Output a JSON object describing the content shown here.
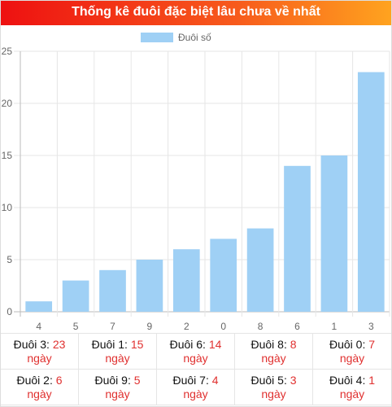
{
  "header": {
    "title": "Thống kê đuôi đặc biệt lâu chưa về nhất"
  },
  "colors": {
    "bar": "#9fd0f5",
    "accent": "#e0302f"
  },
  "chart_data": {
    "type": "bar",
    "title": "",
    "xlabel": "",
    "ylabel": "",
    "categories": [
      "4",
      "5",
      "7",
      "9",
      "2",
      "0",
      "8",
      "6",
      "1",
      "3"
    ],
    "series": [
      {
        "name": "Đuôi số",
        "values": [
          1,
          3,
          4,
          5,
          6,
          7,
          8,
          14,
          15,
          23
        ]
      }
    ],
    "ylim": [
      0,
      25
    ],
    "yticks": [
      "0",
      "5",
      "10",
      "15",
      "20",
      "25"
    ],
    "grid": true,
    "legend": "top-center"
  },
  "stats": [
    {
      "label": "Đuôi 3: ",
      "value": "23",
      "unit": "ngày"
    },
    {
      "label": "Đuôi 1: ",
      "value": "15",
      "unit": "ngày"
    },
    {
      "label": "Đuôi 6: ",
      "value": "14",
      "unit": "ngày"
    },
    {
      "label": "Đuôi 8: ",
      "value": "8",
      "unit": "ngày"
    },
    {
      "label": "Đuôi 0: ",
      "value": "7",
      "unit": "ngày"
    },
    {
      "label": "Đuôi 2: ",
      "value": "6",
      "unit": "ngày"
    },
    {
      "label": "Đuôi 9: ",
      "value": "5",
      "unit": "ngày"
    },
    {
      "label": "Đuôi 7: ",
      "value": "4",
      "unit": "ngày"
    },
    {
      "label": "Đuôi 5: ",
      "value": "3",
      "unit": "ngày"
    },
    {
      "label": "Đuôi 4: ",
      "value": "1",
      "unit": "ngày"
    }
  ]
}
